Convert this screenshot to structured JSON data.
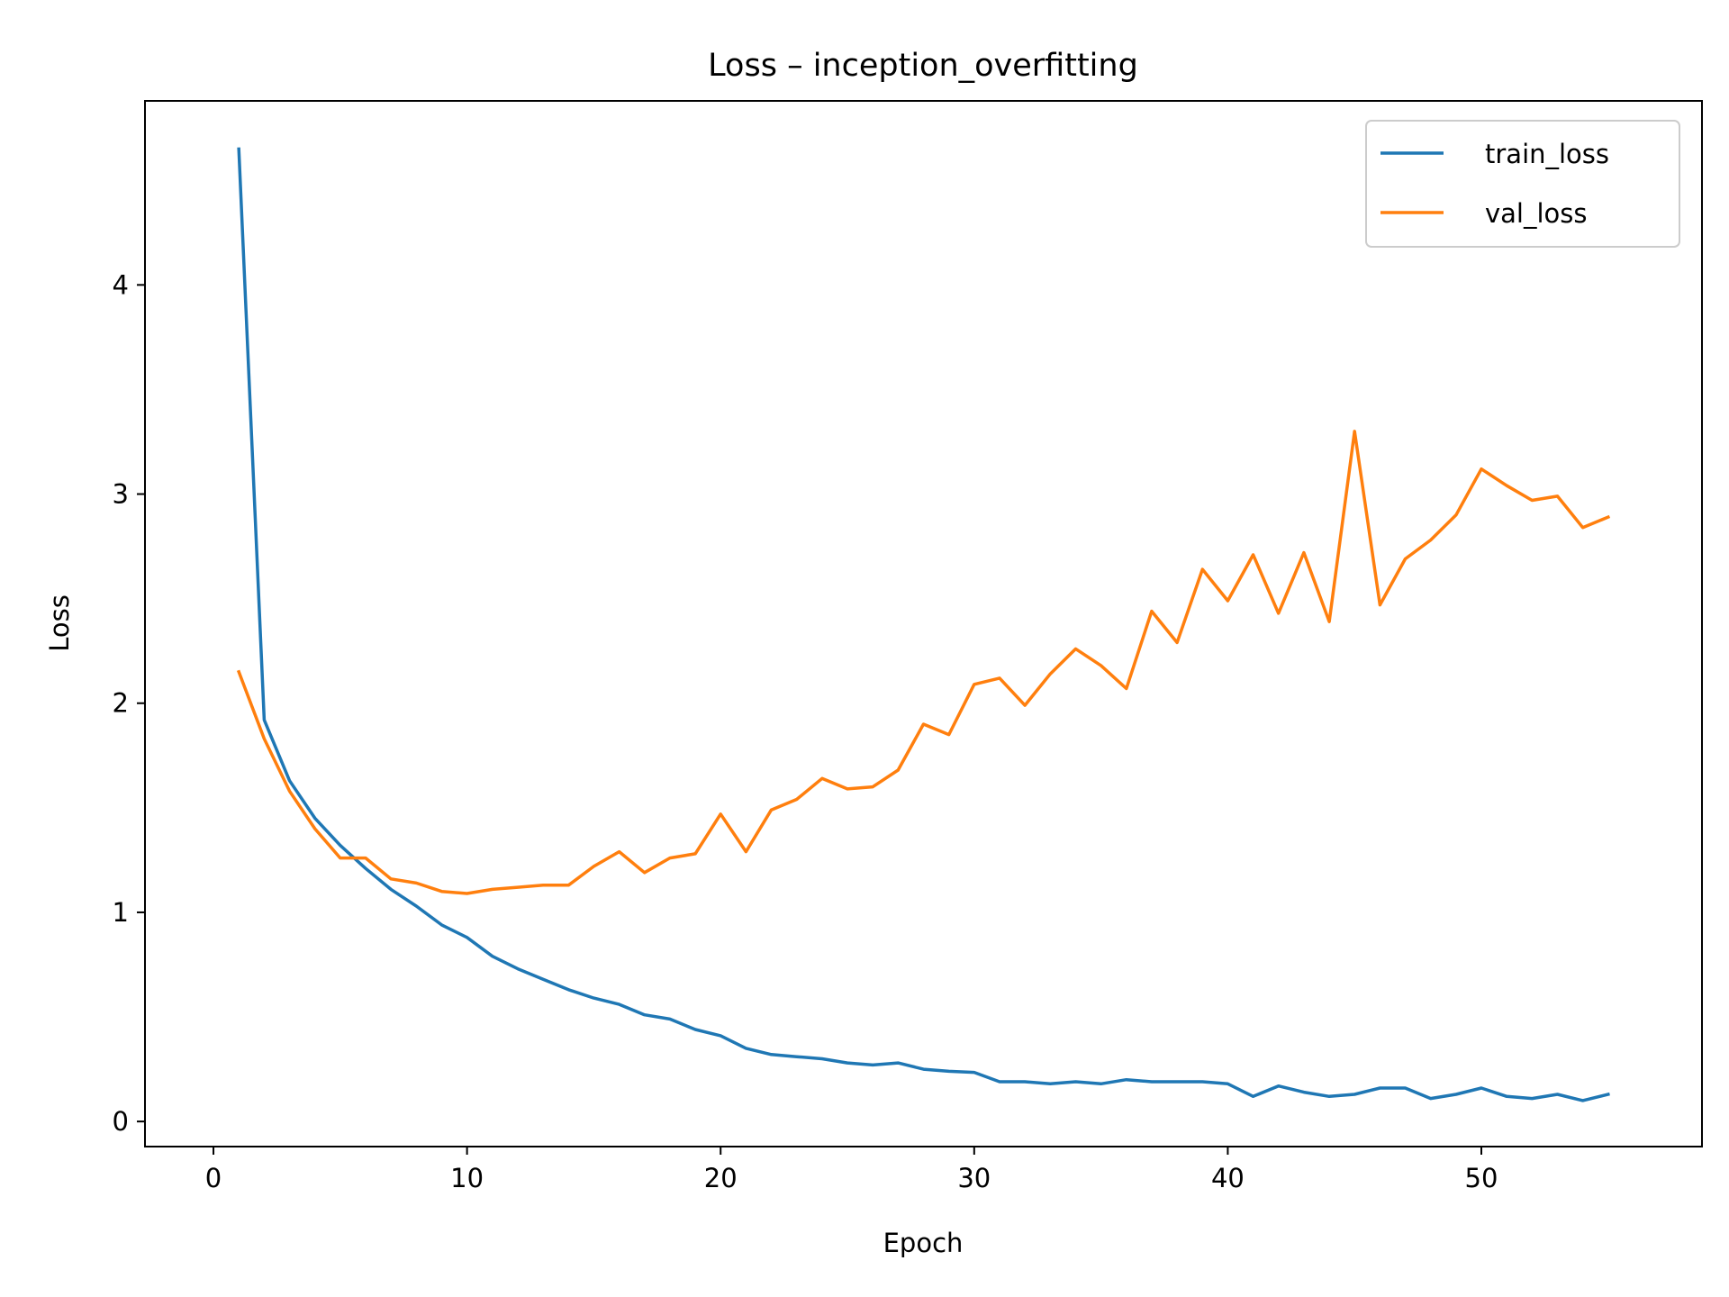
{
  "chart_data": {
    "type": "line",
    "title": "Loss – inception_overfitting",
    "xlabel": "Epoch",
    "ylabel": "Loss",
    "xlim": [
      -2.7,
      58.7
    ],
    "ylim": [
      -0.12,
      4.88
    ],
    "xticks": [
      0,
      10,
      20,
      30,
      40,
      50
    ],
    "yticks": [
      0,
      1,
      2,
      3,
      4
    ],
    "grid": false,
    "legend_position": "top-right",
    "x": [
      1,
      2,
      3,
      4,
      5,
      6,
      7,
      8,
      9,
      10,
      11,
      12,
      13,
      14,
      15,
      16,
      17,
      18,
      19,
      20,
      21,
      22,
      23,
      24,
      25,
      26,
      27,
      28,
      29,
      30,
      31,
      32,
      33,
      34,
      35,
      36,
      37,
      38,
      39,
      40,
      41,
      42,
      43,
      44,
      45,
      46,
      47,
      48,
      49,
      50,
      51,
      52,
      53,
      54,
      55
    ],
    "series": [
      {
        "name": "train_loss",
        "color": "#1f77b4",
        "values": [
          4.65,
          1.92,
          1.63,
          1.45,
          1.32,
          1.21,
          1.11,
          1.03,
          0.94,
          0.88,
          0.79,
          0.73,
          0.68,
          0.63,
          0.59,
          0.56,
          0.51,
          0.49,
          0.44,
          0.41,
          0.35,
          0.32,
          0.31,
          0.3,
          0.28,
          0.27,
          0.28,
          0.25,
          0.24,
          0.235,
          0.19,
          0.19,
          0.18,
          0.19,
          0.18,
          0.2,
          0.19,
          0.19,
          0.19,
          0.18,
          0.12,
          0.17,
          0.14,
          0.12,
          0.13,
          0.16,
          0.16,
          0.11,
          0.13,
          0.16,
          0.12,
          0.11,
          0.13,
          0.1,
          0.13
        ]
      },
      {
        "name": "val_loss",
        "color": "#ff7f0e",
        "values": [
          2.15,
          1.83,
          1.58,
          1.4,
          1.26,
          1.26,
          1.16,
          1.14,
          1.1,
          1.09,
          1.11,
          1.12,
          1.13,
          1.13,
          1.22,
          1.29,
          1.19,
          1.26,
          1.28,
          1.47,
          1.29,
          1.49,
          1.54,
          1.64,
          1.59,
          1.6,
          1.68,
          1.9,
          1.85,
          2.09,
          2.12,
          1.99,
          2.14,
          2.26,
          2.18,
          2.07,
          2.44,
          2.29,
          2.64,
          2.49,
          2.71,
          2.43,
          2.72,
          2.39,
          3.3,
          2.47,
          2.69,
          2.78,
          2.9,
          3.12,
          3.04,
          2.97,
          2.99,
          2.84,
          2.89
        ]
      }
    ]
  }
}
